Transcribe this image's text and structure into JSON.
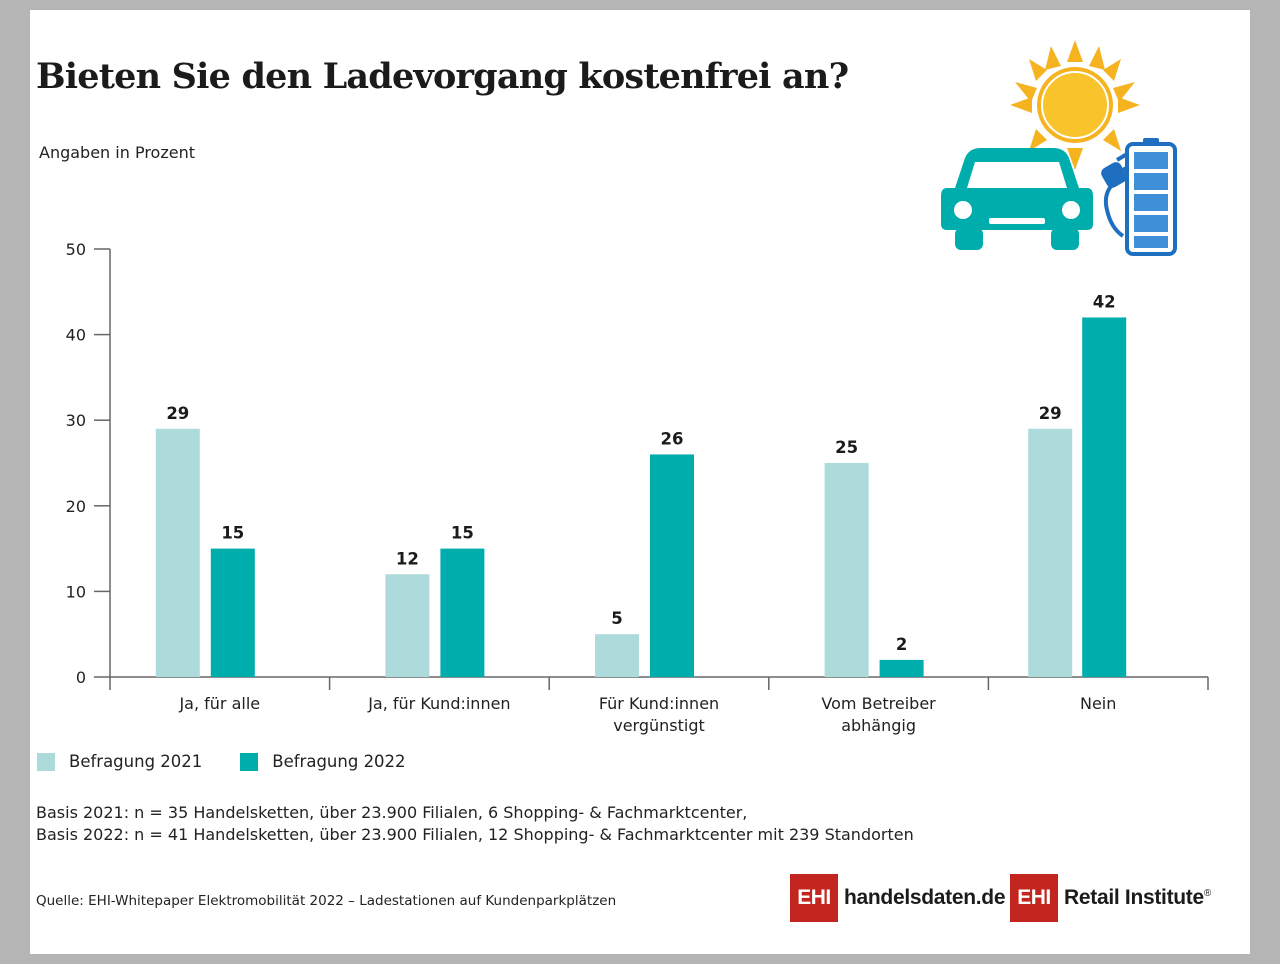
{
  "chart_data": {
    "type": "bar",
    "title": "Bieten Sie den Ladevorgang kostenfrei an?",
    "subtitle": "Angaben in Prozent",
    "categories": [
      [
        "Ja, für alle"
      ],
      [
        "Ja, für Kund:innen"
      ],
      [
        "Für Kund:innen",
        "vergünstigt"
      ],
      [
        "Vom Betreiber",
        "abhängig"
      ],
      [
        "Nein"
      ]
    ],
    "series": [
      {
        "name": "Befragung 2021",
        "values": [
          29,
          12,
          5,
          25,
          29
        ],
        "color": "#addada"
      },
      {
        "name": "Befragung 2022",
        "values": [
          15,
          15,
          26,
          2,
          42
        ],
        "color": "#00adad"
      }
    ],
    "ylim": [
      0,
      50
    ],
    "yticks": [
      0,
      10,
      20,
      30,
      40,
      50
    ],
    "grid": false,
    "legend": "bottom-left"
  },
  "basis": [
    "Basis 2021: n = 35 Handelsketten, über 23.900 Filialen, 6 Shopping- & Fachmarktcenter,",
    "Basis 2022: n = 41 Handelsketten, über 23.900 Filialen, 12 Shopping- & Fachmarktcenter mit 239 Standorten"
  ],
  "source": "Quelle: EHI-Whitepaper Elektromobilität 2022 – Ladestationen auf Kundenparkplätzen",
  "logos": [
    {
      "mark": "EHI",
      "text": "handelsdaten.de"
    },
    {
      "mark": "EHI",
      "text": "Retail Institute",
      "sup": "®"
    }
  ],
  "illustration": {
    "icons": [
      "sun-icon",
      "car-icon",
      "charging-plug-icon",
      "battery-icon"
    ]
  }
}
